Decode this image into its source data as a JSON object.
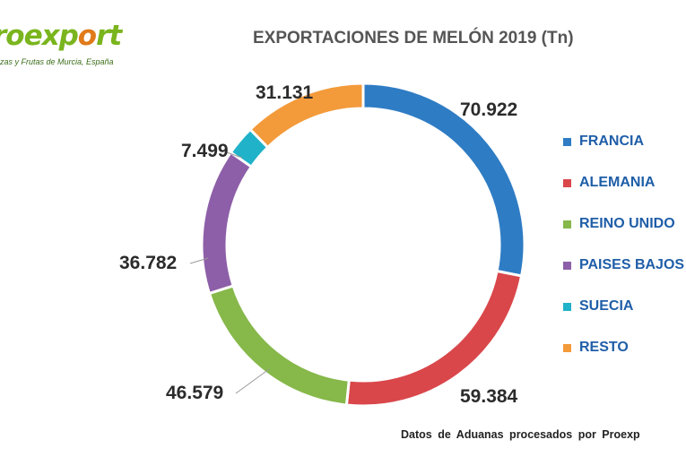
{
  "logo": {
    "text_pre": "roexp",
    "text_o": "o",
    "text_post": "rt",
    "subtitle": "lizas y Frutas de Murcia, España"
  },
  "chart_data": {
    "type": "pie",
    "title": "EXPORTACIONES DE MELÓN 2019 (Tn)",
    "series": [
      {
        "name": "FRANCIA",
        "value": 70922,
        "label": "70.922",
        "color": "#2e7cc4"
      },
      {
        "name": "ALEMANIA",
        "value": 59384,
        "label": "59.384",
        "color": "#d9474b"
      },
      {
        "name": "REINO UNIDO",
        "value": 46579,
        "label": "46.579",
        "color": "#86b84a"
      },
      {
        "name": "PAISES BAJOS",
        "value": 36782,
        "label": "36.782",
        "color": "#8d5fa8"
      },
      {
        "name": "SUECIA",
        "value": 7499,
        "label": "7.499",
        "color": "#1fb2c8"
      },
      {
        "name": "RESTO",
        "value": 31131,
        "label": "31.131",
        "color": "#f39a3a"
      }
    ],
    "legend_position": "right",
    "style": "donut"
  },
  "footer": {
    "source": "Datos de Aduanas procesados por Proexp"
  }
}
